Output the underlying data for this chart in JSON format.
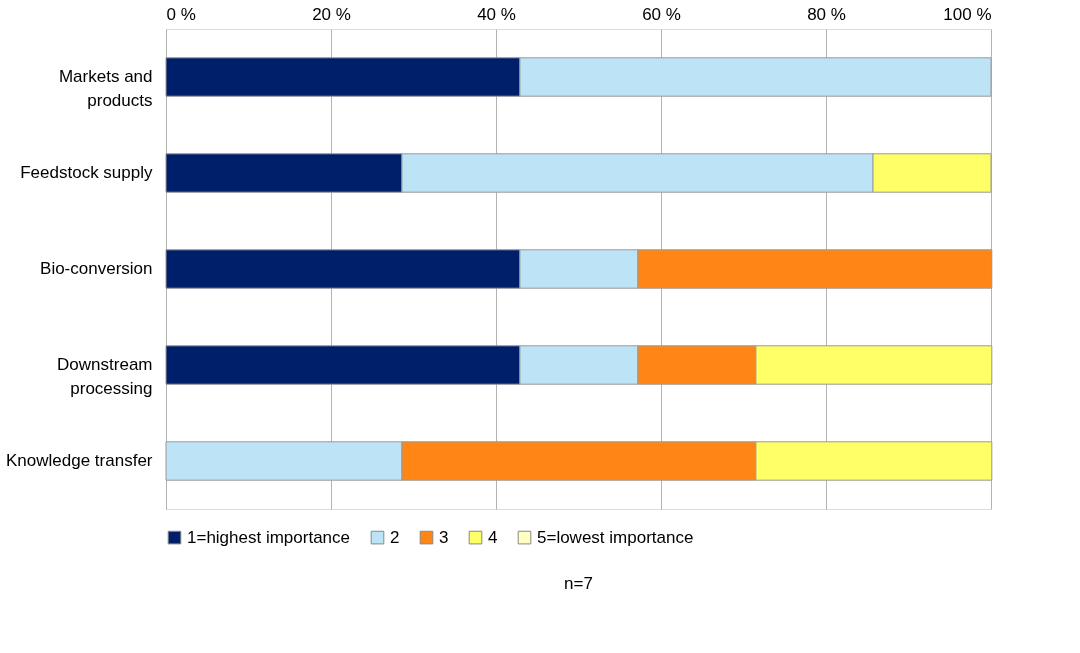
{
  "chart_data": {
    "type": "bar",
    "orientation": "horizontal",
    "stacked": true,
    "categories": [
      "Markets and products",
      "Feedstock supply",
      "Bio-conversion",
      "Downstream processing",
      "Knowledge transfer"
    ],
    "series": [
      {
        "name": "1=highest importance",
        "color": "#001f6b",
        "values": [
          42.9,
          28.6,
          42.9,
          42.9,
          null
        ]
      },
      {
        "name": "2",
        "color": "#bde3f7",
        "values": [
          57.1,
          57.1,
          14.3,
          14.3,
          28.6
        ]
      },
      {
        "name": "3",
        "color": "#ff8514",
        "values": [
          null,
          null,
          42.9,
          14.3,
          42.9
        ]
      },
      {
        "name": "4",
        "color": "#ffff66",
        "values": [
          null,
          14.3,
          null,
          28.6,
          28.6
        ]
      },
      {
        "name": "5=lowest importance",
        "color": "#ffffc0",
        "values": [
          null,
          null,
          null,
          null,
          null
        ]
      }
    ],
    "xlim": [
      0,
      100
    ],
    "xticks": [
      {
        "value": 0,
        "label": "0 %"
      },
      {
        "value": 20,
        "label": "20 %"
      },
      {
        "value": 40,
        "label": "40 %"
      },
      {
        "value": 60,
        "label": "60 %"
      },
      {
        "value": 80,
        "label": "80 %"
      },
      {
        "value": 100,
        "label": "100 %"
      }
    ],
    "grid": "x",
    "legend": "bottom",
    "annotations": [
      "n=7"
    ]
  }
}
